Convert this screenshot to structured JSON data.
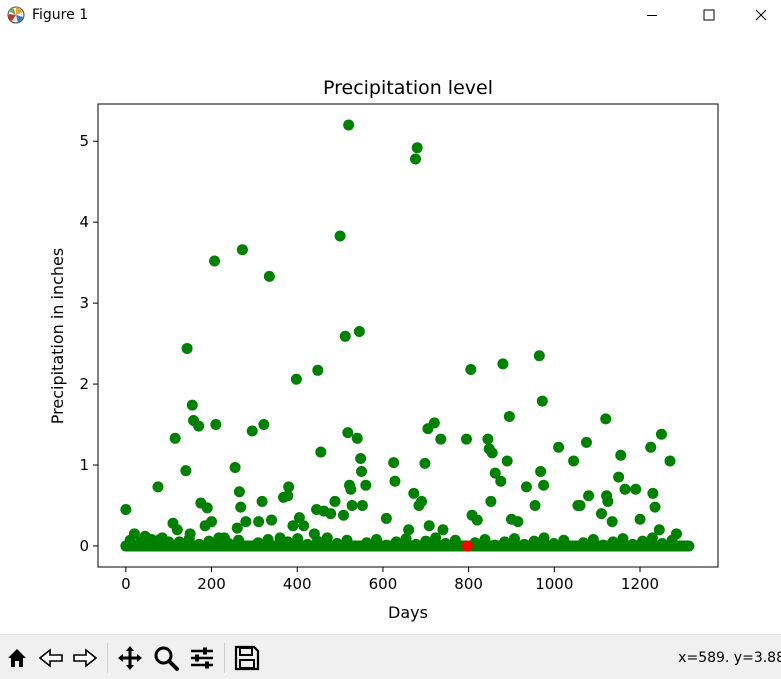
{
  "window": {
    "title": "Figure 1"
  },
  "toolbar": {
    "buttons": [
      "home-icon",
      "back-icon",
      "forward-icon",
      "pan-icon",
      "zoom-icon",
      "configure-subplots-icon",
      "save-icon"
    ],
    "coords": "x=589. y=3.88"
  },
  "colors": {
    "points": "#008000",
    "highlight": "#ff0000"
  },
  "chart_data": {
    "type": "scatter",
    "title": "Precipitation level",
    "xlabel": "Days",
    "ylabel": "Precipitation in inches",
    "xlim": [
      -65,
      1382
    ],
    "ylim": [
      -0.26,
      5.46
    ],
    "xticks": [
      0,
      200,
      400,
      600,
      800,
      1000,
      1200
    ],
    "yticks": [
      0,
      1,
      2,
      3,
      4,
      5
    ],
    "grid": false,
    "series": [
      {
        "color": "#008000",
        "points": [
          [
            0,
            0.45
          ],
          [
            8,
            0.02
          ],
          [
            20,
            0.15
          ],
          [
            35,
            0.05
          ],
          [
            45,
            0.12
          ],
          [
            60,
            0.08
          ],
          [
            75,
            0.73
          ],
          [
            85,
            0.1
          ],
          [
            100,
            0.05
          ],
          [
            110,
            0.28
          ],
          [
            115,
            1.33
          ],
          [
            120,
            0.2
          ],
          [
            140,
            0.93
          ],
          [
            143,
            2.44
          ],
          [
            150,
            0.15
          ],
          [
            155,
            1.74
          ],
          [
            158,
            1.55
          ],
          [
            170,
            1.48
          ],
          [
            175,
            0.53
          ],
          [
            185,
            0.25
          ],
          [
            190,
            0.47
          ],
          [
            200,
            0.3
          ],
          [
            207,
            3.52
          ],
          [
            210,
            1.5
          ],
          [
            230,
            0.1
          ],
          [
            255,
            0.97
          ],
          [
            260,
            0.22
          ],
          [
            265,
            0.67
          ],
          [
            268,
            0.48
          ],
          [
            272,
            3.66
          ],
          [
            280,
            0.3
          ],
          [
            295,
            1.42
          ],
          [
            310,
            0.3
          ],
          [
            318,
            0.55
          ],
          [
            322,
            1.5
          ],
          [
            335,
            3.33
          ],
          [
            340,
            0.32
          ],
          [
            360,
            0.1
          ],
          [
            368,
            0.6
          ],
          [
            378,
            0.62
          ],
          [
            380,
            0.73
          ],
          [
            390,
            0.25
          ],
          [
            398,
            2.06
          ],
          [
            405,
            0.35
          ],
          [
            415,
            0.25
          ],
          [
            440,
            0.15
          ],
          [
            445,
            0.45
          ],
          [
            448,
            2.17
          ],
          [
            455,
            1.16
          ],
          [
            462,
            0.43
          ],
          [
            478,
            0.4
          ],
          [
            488,
            0.55
          ],
          [
            500,
            3.83
          ],
          [
            508,
            0.38
          ],
          [
            512,
            2.59
          ],
          [
            518,
            1.4
          ],
          [
            520,
            5.2
          ],
          [
            522,
            0.75
          ],
          [
            525,
            0.7
          ],
          [
            528,
            0.5
          ],
          [
            540,
            1.33
          ],
          [
            545,
            2.65
          ],
          [
            548,
            1.08
          ],
          [
            550,
            0.92
          ],
          [
            552,
            0.5
          ],
          [
            560,
            0.75
          ],
          [
            608,
            0.34
          ],
          [
            625,
            1.03
          ],
          [
            628,
            0.8
          ],
          [
            660,
            0.2
          ],
          [
            672,
            0.65
          ],
          [
            676,
            4.78
          ],
          [
            680,
            4.92
          ],
          [
            684,
            0.5
          ],
          [
            690,
            0.55
          ],
          [
            698,
            1.02
          ],
          [
            705,
            1.45
          ],
          [
            708,
            0.25
          ],
          [
            720,
            1.52
          ],
          [
            735,
            1.32
          ],
          [
            740,
            0.2
          ],
          [
            795,
            1.32
          ],
          [
            805,
            2.18
          ],
          [
            808,
            0.38
          ],
          [
            820,
            0.32
          ],
          [
            845,
            1.32
          ],
          [
            848,
            1.2
          ],
          [
            852,
            0.55
          ],
          [
            855,
            1.15
          ],
          [
            862,
            0.9
          ],
          [
            875,
            0.8
          ],
          [
            880,
            2.25
          ],
          [
            890,
            1.05
          ],
          [
            895,
            1.6
          ],
          [
            900,
            0.33
          ],
          [
            915,
            0.3
          ],
          [
            935,
            0.73
          ],
          [
            955,
            0.5
          ],
          [
            965,
            2.35
          ],
          [
            968,
            0.92
          ],
          [
            972,
            1.79
          ],
          [
            975,
            0.75
          ],
          [
            1010,
            1.22
          ],
          [
            1045,
            1.05
          ],
          [
            1055,
            0.5
          ],
          [
            1060,
            0.5
          ],
          [
            1075,
            1.28
          ],
          [
            1080,
            0.62
          ],
          [
            1110,
            0.4
          ],
          [
            1120,
            1.57
          ],
          [
            1122,
            0.62
          ],
          [
            1125,
            0.55
          ],
          [
            1135,
            0.3
          ],
          [
            1150,
            0.85
          ],
          [
            1155,
            1.12
          ],
          [
            1165,
            0.7
          ],
          [
            1190,
            0.7
          ],
          [
            1200,
            0.33
          ],
          [
            1225,
            1.22
          ],
          [
            1230,
            0.65
          ],
          [
            1235,
            0.48
          ],
          [
            1245,
            0.2
          ],
          [
            1250,
            1.38
          ],
          [
            1270,
            1.05
          ],
          [
            1285,
            0.15
          ]
        ]
      },
      {
        "color": "#ff0000",
        "points": [
          [
            797,
            0
          ]
        ]
      }
    ],
    "zero_run": {
      "start": 0,
      "end": 1315,
      "color": "#008000"
    }
  }
}
